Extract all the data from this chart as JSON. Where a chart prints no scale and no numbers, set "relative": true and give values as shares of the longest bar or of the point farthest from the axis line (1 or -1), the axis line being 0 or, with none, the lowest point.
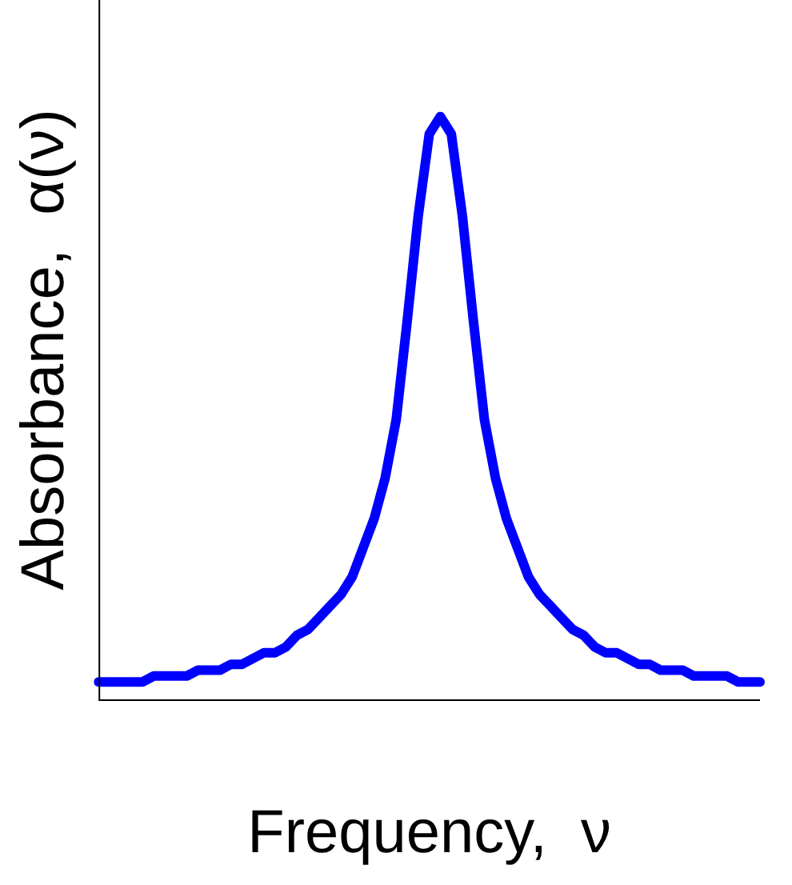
{
  "chart_data": {
    "type": "line",
    "xlabel": "Frequency,  ν",
    "ylabel": "Absorbance,  α(ν)",
    "relative": true,
    "categories": [
      null,
      null,
      null,
      null,
      null,
      null,
      null,
      null,
      null,
      null,
      null,
      null,
      null,
      null,
      null,
      null,
      null,
      null,
      null,
      null,
      null,
      null,
      null,
      null,
      null,
      null,
      null,
      null,
      null,
      null,
      null,
      null,
      null,
      null,
      null,
      null,
      null,
      null,
      null,
      null,
      null,
      null,
      null,
      null,
      null,
      null,
      null,
      null,
      null,
      null,
      null,
      null,
      null,
      null,
      null,
      null,
      null,
      null,
      null,
      null,
      null
    ],
    "series": [
      {
        "color": "#0000ff",
        "values": [
          0.03,
          0.03,
          0.03,
          0.03,
          0.03,
          0.04,
          0.04,
          0.04,
          0.04,
          0.05,
          0.05,
          0.05,
          0.06,
          0.06,
          0.07,
          0.08,
          0.08,
          0.09,
          0.11,
          0.12,
          0.14,
          0.16,
          0.18,
          0.21,
          0.26,
          0.31,
          0.38,
          0.48,
          0.65,
          0.83,
          0.97,
          1,
          0.97,
          0.83,
          0.65,
          0.48,
          0.38,
          0.31,
          0.26,
          0.21,
          0.18,
          0.16,
          0.14,
          0.12,
          0.11,
          0.09,
          0.08,
          0.08,
          0.07,
          0.06,
          0.06,
          0.05,
          0.05,
          0.05,
          0.04,
          0.04,
          0.04,
          0.04,
          0.03,
          0.03,
          0.03
        ]
      }
    ],
    "grid": false,
    "legend": false,
    "marker": "none",
    "line_style": "solid"
  }
}
